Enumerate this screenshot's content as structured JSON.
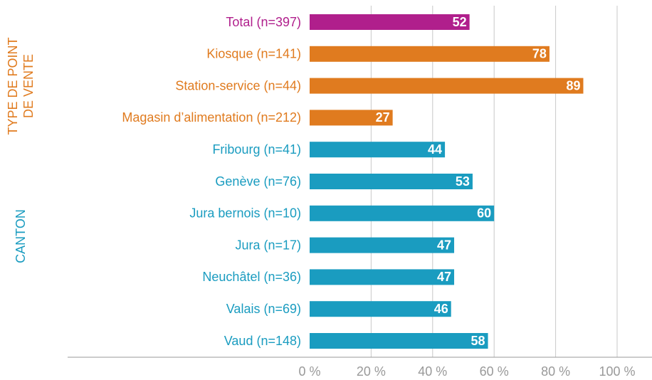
{
  "chart_data": {
    "type": "bar",
    "orientation": "horizontal",
    "categories": [
      "Total (n=397)",
      "Kiosque (n=141)",
      "Station-service (n=44)",
      "Magasin d’alimentation (n=212)",
      "Fribourg (n=41)",
      "Genève (n=76)",
      "Jura bernois (n=10)",
      "Jura (n=17)",
      "Neuchâtel (n=36)",
      "Valais (n=69)",
      "Vaud (n=148)"
    ],
    "values": [
      52,
      78,
      89,
      27,
      44,
      53,
      60,
      47,
      47,
      46,
      58
    ],
    "colors": [
      "#b01f8c",
      "#e07b1f",
      "#e07b1f",
      "#e07b1f",
      "#1a9cc0",
      "#1a9cc0",
      "#1a9cc0",
      "#1a9cc0",
      "#1a9cc0",
      "#1a9cc0",
      "#1a9cc0"
    ],
    "groups": [
      {
        "label": [
          "TYPE DE POINT",
          "DE VENTE"
        ],
        "color": "#e07b1f"
      },
      {
        "label": [
          "CANTON"
        ],
        "color": "#1a9cc0"
      }
    ],
    "xlim": [
      0,
      100
    ],
    "xticks": [
      {
        "value": 0,
        "label": "0 %"
      },
      {
        "value": 20,
        "label": "20 %"
      },
      {
        "value": 40,
        "label": "40 %"
      },
      {
        "value": 60,
        "label": "60 %"
      },
      {
        "value": 80,
        "label": "80 %"
      },
      {
        "value": 100,
        "label": "100 %"
      }
    ],
    "grid": true
  }
}
